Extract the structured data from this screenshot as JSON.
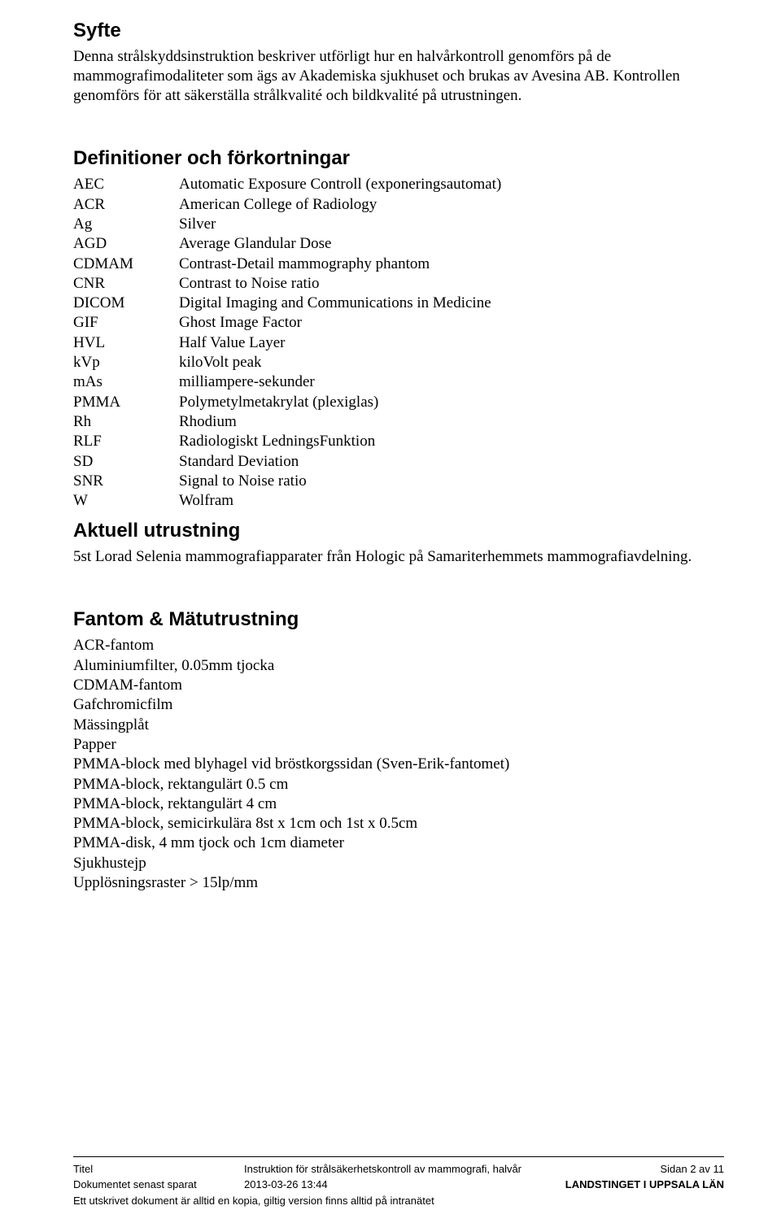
{
  "syfte": {
    "heading": "Syfte",
    "para": "Denna strålskyddsinstruktion beskriver utförligt hur en halvårkontroll genomförs på de mammografimodaliteter som ägs av Akademiska sjukhuset och brukas av Avesina AB. Kontrollen genomförs för att säkerställa strålkvalité och bildkvalité på utrustningen."
  },
  "defs": {
    "heading": "Definitioner och förkortningar",
    "items": [
      {
        "abbr": "AEC",
        "expl": "Automatic Exposure Controll (exponeringsautomat)"
      },
      {
        "abbr": "ACR",
        "expl": "American College of Radiology"
      },
      {
        "abbr": "Ag",
        "expl": "Silver"
      },
      {
        "abbr": "AGD",
        "expl": "Average Glandular Dose"
      },
      {
        "abbr": "CDMAM",
        "expl": "Contrast-Detail mammography phantom"
      },
      {
        "abbr": "CNR",
        "expl": "Contrast to Noise ratio"
      },
      {
        "abbr": "DICOM",
        "expl": "Digital Imaging and Communications in Medicine"
      },
      {
        "abbr": "GIF",
        "expl": "Ghost Image Factor"
      },
      {
        "abbr": "HVL",
        "expl": "Half Value Layer"
      },
      {
        "abbr": "kVp",
        "expl": "kiloVolt peak"
      },
      {
        "abbr": "mAs",
        "expl": "milliampere-sekunder"
      },
      {
        "abbr": "PMMA",
        "expl": "Polymetylmetakrylat (plexiglas)"
      },
      {
        "abbr": "Rh",
        "expl": "Rhodium"
      },
      {
        "abbr": "RLF",
        "expl": "Radiologiskt LedningsFunktion"
      },
      {
        "abbr": "SD",
        "expl": "Standard Deviation"
      },
      {
        "abbr": "SNR",
        "expl": "Signal to Noise ratio"
      },
      {
        "abbr": "W",
        "expl": "Wolfram"
      }
    ]
  },
  "equipment": {
    "heading": "Aktuell utrustning",
    "para": "5st Lorad Selenia mammografiapparater från Hologic på Samariterhemmets mammografiavdelning."
  },
  "phantom": {
    "heading": "Fantom & Mätutrustning",
    "items": [
      "ACR-fantom",
      "Aluminiumfilter, 0.05mm tjocka",
      "CDMAM-fantom",
      "Gafchromicfilm",
      "Mässingplåt",
      "Papper",
      "PMMA-block med blyhagel vid bröstkorgssidan (Sven-Erik-fantomet)",
      "PMMA-block, rektangulärt 0.5 cm",
      "PMMA-block, rektangulärt 4 cm",
      "PMMA-block, semicirkulära 8st x 1cm och 1st x 0.5cm",
      "PMMA-disk, 4 mm tjock och 1cm diameter",
      "Sjukhustejp",
      "Upplösningsraster > 15lp/mm"
    ]
  },
  "footer": {
    "titleLabel": "Titel",
    "title": "Instruktion för strålsäkerhetskontroll av mammografi, halvår",
    "savedLabel": "Dokumentet senast sparat",
    "saved": "2013-03-26 13:44",
    "pageLabel": "Sidan 2 av 11",
    "org": "LANDSTINGET I UPPSALA LÄN",
    "note": "Ett utskrivet dokument är alltid en kopia, giltig version finns alltid på intranätet"
  }
}
